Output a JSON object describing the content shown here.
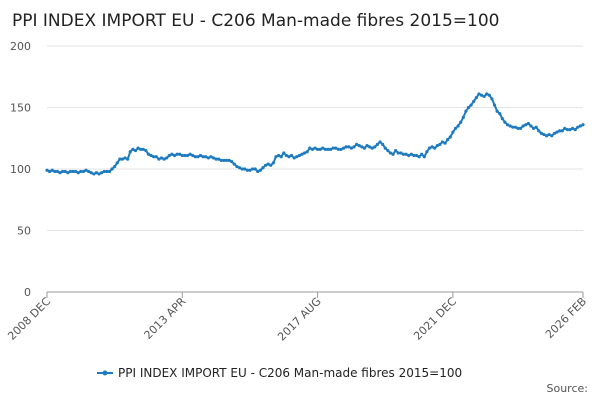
{
  "chart_data": {
    "type": "line",
    "title": "PPI INDEX IMPORT EU - C206 Man-made fibres 2015=100",
    "source": "Source:",
    "categories": [
      "2008 DEC",
      null,
      null,
      null,
      null,
      null,
      null,
      null,
      null,
      null,
      null,
      null,
      null,
      null,
      null,
      null,
      null,
      null,
      null,
      null,
      null,
      null,
      null,
      null,
      null,
      null,
      null,
      null,
      null,
      null,
      null,
      null,
      null,
      null,
      null,
      null,
      null,
      null,
      null,
      null,
      null,
      null,
      null,
      null,
      null,
      null,
      null,
      null,
      null,
      null,
      null,
      null,
      "2013 APR",
      null,
      null,
      null,
      null,
      null,
      null,
      null,
      null,
      null,
      null,
      null,
      null,
      null,
      null,
      null,
      null,
      null,
      null,
      null,
      null,
      null,
      null,
      null,
      null,
      null,
      null,
      null,
      null,
      null,
      null,
      null,
      null,
      null,
      null,
      null,
      null,
      null,
      null,
      null,
      null,
      null,
      null,
      null,
      null,
      null,
      null,
      null,
      null,
      null,
      null,
      null,
      "2017 AUG",
      null,
      null,
      null,
      null,
      null,
      null,
      null,
      null,
      null,
      null,
      null,
      null,
      null,
      null,
      null,
      null,
      null,
      null,
      null,
      null,
      null,
      null,
      null,
      null,
      null,
      null,
      null,
      null,
      null,
      null,
      null,
      null,
      null,
      null,
      null,
      null,
      null,
      null,
      null,
      null,
      null,
      null,
      null,
      null,
      null,
      null,
      null,
      null,
      null,
      null,
      null,
      "2021 DEC",
      null,
      null,
      null,
      null,
      null,
      null,
      null,
      null,
      null,
      null,
      null,
      null,
      null,
      null,
      null,
      null,
      null,
      null,
      null,
      null,
      null,
      null,
      null,
      null,
      null,
      null,
      null,
      null,
      null,
      null,
      null,
      null,
      null,
      null,
      null,
      null,
      null,
      null,
      null,
      null,
      null,
      null,
      null,
      null,
      null,
      null,
      null,
      null,
      null,
      "2026 FEB"
    ],
    "series": [
      {
        "name": "PPI INDEX IMPORT EU - C206 Man-made fibres 2015=100",
        "color": "#1f7bbf",
        "values": [
          99,
          98,
          99,
          98,
          98,
          97,
          98,
          98,
          97,
          98,
          98,
          98,
          97,
          98,
          98,
          99,
          98,
          97,
          96,
          97,
          96,
          97,
          98,
          98,
          98,
          100,
          102,
          105,
          108,
          108,
          109,
          108,
          114,
          116,
          115,
          117,
          116,
          116,
          115,
          112,
          111,
          110,
          110,
          108,
          109,
          108,
          109,
          111,
          112,
          111,
          112,
          112,
          111,
          111,
          111,
          112,
          111,
          110,
          110,
          111,
          110,
          110,
          109,
          110,
          109,
          108,
          108,
          107,
          107,
          107,
          107,
          106,
          104,
          102,
          101,
          100,
          100,
          99,
          99,
          100,
          100,
          98,
          99,
          101,
          103,
          104,
          103,
          105,
          110,
          111,
          110,
          113,
          111,
          110,
          111,
          109,
          110,
          111,
          112,
          113,
          114,
          117,
          116,
          117,
          116,
          116,
          117,
          116,
          116,
          116,
          117,
          117,
          116,
          116,
          117,
          118,
          118,
          117,
          118,
          120,
          119,
          118,
          117,
          119,
          118,
          117,
          118,
          120,
          122,
          120,
          117,
          115,
          113,
          112,
          115,
          113,
          113,
          112,
          112,
          111,
          112,
          111,
          111,
          110,
          112,
          110,
          114,
          117,
          118,
          117,
          119,
          120,
          122,
          121,
          124,
          126,
          130,
          133,
          135,
          138,
          142,
          147,
          150,
          152,
          155,
          158,
          161,
          160,
          159,
          161,
          160,
          157,
          152,
          147,
          145,
          141,
          138,
          136,
          135,
          134,
          134,
          133,
          133,
          135,
          136,
          137,
          135,
          133,
          134,
          131,
          129,
          128,
          127,
          128,
          127,
          129,
          130,
          131,
          131,
          133,
          132,
          132,
          133,
          132,
          134,
          135,
          136
        ]
      }
    ],
    "ylim": [
      0,
      200
    ],
    "yticks": [
      0,
      50,
      100,
      150,
      200
    ],
    "grid": true
  }
}
